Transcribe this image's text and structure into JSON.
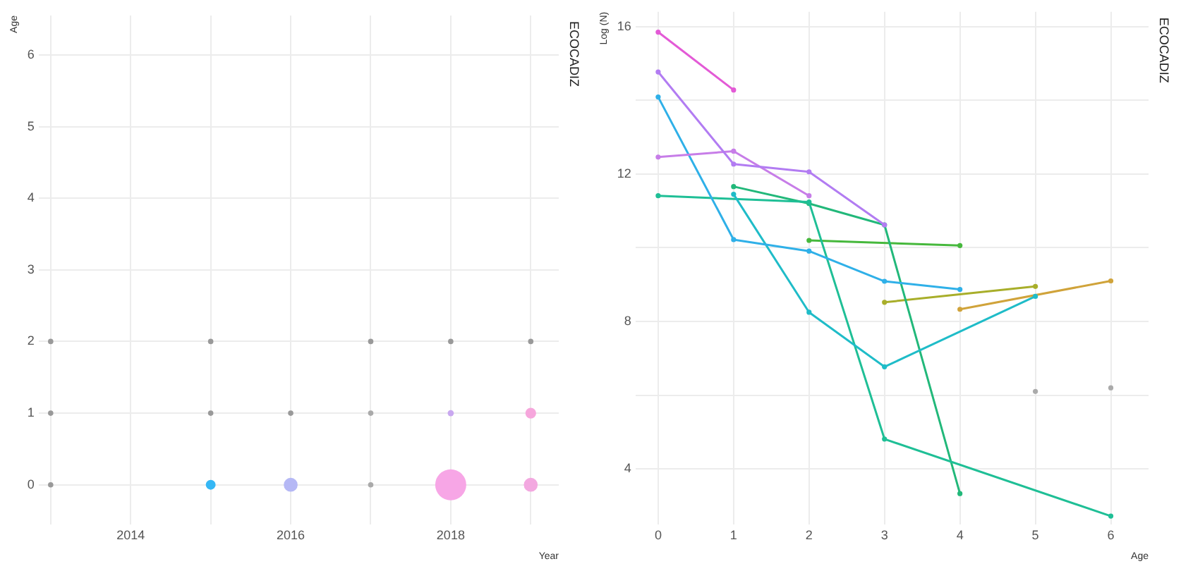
{
  "chart_data": [
    {
      "type": "bubble",
      "xlabel": "Year",
      "ylabel": "Age",
      "annotations": [
        "ECOCADIZ"
      ],
      "x": [
        2013,
        2015,
        2016,
        2017,
        2018,
        2019,
        2013,
        2015,
        2016,
        2017,
        2018,
        2019,
        2013,
        2015,
        2017,
        2018,
        2019
      ],
      "values": [
        0,
        0,
        0,
        0,
        0,
        1,
        1,
        1,
        1,
        1,
        1,
        0,
        2,
        2,
        2,
        2,
        2
      ],
      "sizes": [
        0.03,
        0.1,
        0.2,
        0.03,
        1,
        0.12,
        0.03,
        0.03,
        0.03,
        0.03,
        0.04,
        0.2,
        0.03,
        0.03,
        0.03,
        0.03,
        0.03
      ],
      "colors": [
        "#999999",
        "#35b7f5",
        "#b5b8f5",
        "#aaaaaa",
        "#f7a6e6",
        "#f6a6dc",
        "#999999",
        "#999999",
        "#999999",
        "#aaaaaa",
        "#c9a8f0",
        "#f3a8e0",
        "#999999",
        "#999999",
        "#999999",
        "#999999",
        "#999999"
      ],
      "xlim": [
        2012.85,
        2019.35
      ],
      "xticks": [
        {
          "value": 2013,
          "label": null
        },
        2014,
        {
          "value": 2015,
          "label": null
        },
        2016,
        {
          "value": 2017,
          "label": null
        },
        2018,
        {
          "value": 2019,
          "label": null
        }
      ],
      "ylim": [
        -0.55,
        6.55
      ],
      "yticks": [
        0,
        1,
        2,
        3,
        4,
        5,
        6
      ],
      "grid": true,
      "legend": false,
      "marker": "circle"
    },
    {
      "type": "line",
      "xlabel": "Age",
      "ylabel": "Log (N)",
      "annotations": [
        "ECOCADIZ"
      ],
      "series": [
        {
          "color": "#e35ad6",
          "x": [
            0,
            1
          ],
          "values": [
            15.85,
            14.28
          ]
        },
        {
          "color": "#b27cf2",
          "x": [
            0,
            1,
            2,
            3
          ],
          "values": [
            14.77,
            12.27,
            12.06,
            10.62
          ]
        },
        {
          "color": "#c77de8",
          "x": [
            0,
            1,
            2
          ],
          "values": [
            12.46,
            12.62,
            11.41
          ]
        },
        {
          "color": "#2fb0e8",
          "x": [
            0,
            1,
            2,
            3,
            4
          ],
          "values": [
            14.09,
            10.22,
            9.91,
            9.09,
            8.87
          ]
        },
        {
          "color": "#1fbcc8",
          "x": [
            1,
            2,
            3,
            5
          ],
          "values": [
            11.45,
            8.25,
            6.77,
            8.68
          ]
        },
        {
          "color": "#1fbf96",
          "x": [
            0,
            2,
            3,
            6
          ],
          "values": [
            11.41,
            11.24,
            4.81,
            2.72
          ]
        },
        {
          "color": "#22b87a",
          "x": [
            1,
            2,
            3,
            4
          ],
          "values": [
            11.66,
            11.2,
            10.62,
            3.33
          ]
        },
        {
          "color": "#46b83c",
          "x": [
            2,
            4
          ],
          "values": [
            10.2,
            10.06
          ]
        },
        {
          "color": "#a8ae2a",
          "x": [
            3,
            5
          ],
          "values": [
            8.52,
            8.95
          ]
        },
        {
          "color": "#d0a33a",
          "x": [
            4,
            6
          ],
          "values": [
            8.33,
            9.1
          ]
        },
        {
          "type": "scatter",
          "color": "#aaaaaa",
          "x": [
            5,
            6
          ],
          "values": [
            6.1,
            6.2
          ]
        }
      ],
      "xlim": [
        -0.3,
        6.5
      ],
      "xticks": [
        0,
        1,
        2,
        3,
        4,
        5,
        6
      ],
      "ylim": [
        2.5,
        16.4
      ],
      "yticks": [
        4,
        {
          "value": 6,
          "label": null
        },
        8,
        {
          "value": 10,
          "label": null
        },
        12,
        {
          "value": 14,
          "label": null
        },
        16
      ],
      "grid": true,
      "legend": false,
      "marker": "circle"
    }
  ]
}
